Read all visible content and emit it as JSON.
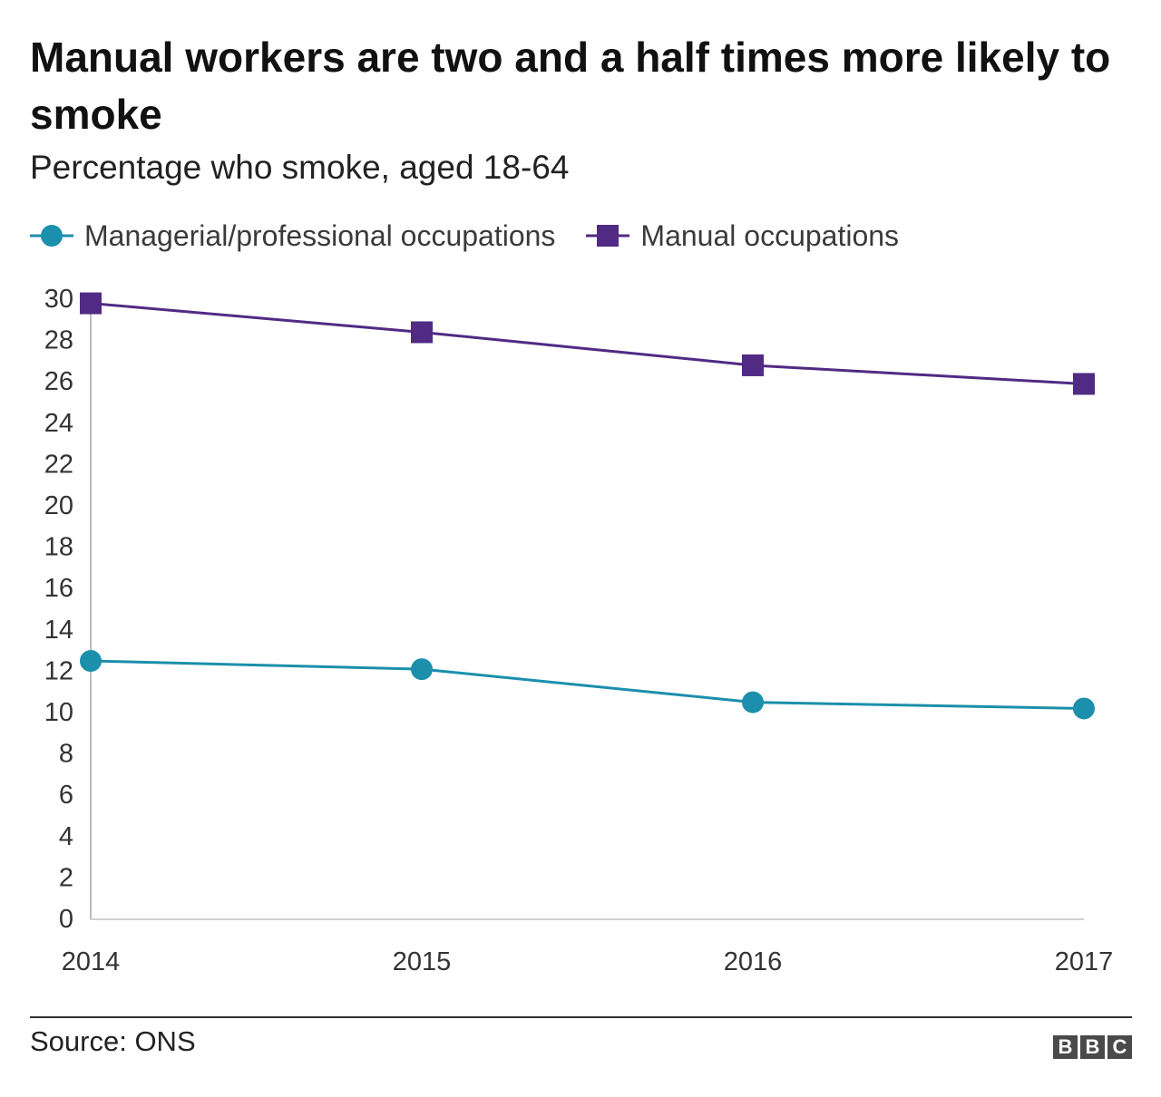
{
  "chart_data": {
    "type": "line",
    "title": "Manual workers are two and a half times more likely to smoke",
    "subtitle": "Percentage who smoke, aged 18-64",
    "x": [
      "2014",
      "2015",
      "2016",
      "2017"
    ],
    "series": [
      {
        "name": "Managerial/professional occupations",
        "values": [
          12.5,
          12.1,
          10.5,
          10.2
        ],
        "color": "#1b8fab",
        "marker": "circle"
      },
      {
        "name": "Manual occupations",
        "values": [
          29.8,
          28.4,
          26.8,
          25.9
        ],
        "color": "#512a84",
        "marker": "square"
      }
    ],
    "yticks": [
      "0",
      "2",
      "4",
      "6",
      "8",
      "10",
      "12",
      "14",
      "16",
      "18",
      "20",
      "22",
      "24",
      "26",
      "28",
      "30"
    ],
    "ylim": [
      0,
      30
    ],
    "xlabel": "",
    "ylabel": "",
    "legend_position": "top-left",
    "grid": false
  },
  "footer": {
    "source": "Source: ONS",
    "logo_letters": [
      "B",
      "B",
      "C"
    ]
  }
}
